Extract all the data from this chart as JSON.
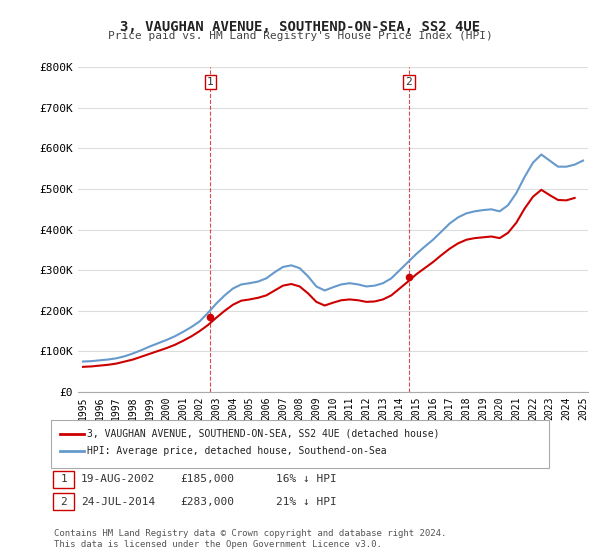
{
  "title": "3, VAUGHAN AVENUE, SOUTHEND-ON-SEA, SS2 4UE",
  "subtitle": "Price paid vs. HM Land Registry's House Price Index (HPI)",
  "ylabel_ticks": [
    "£0",
    "£100K",
    "£200K",
    "£300K",
    "£400K",
    "£500K",
    "£600K",
    "£700K",
    "£800K"
  ],
  "ytick_values": [
    0,
    100000,
    200000,
    300000,
    400000,
    500000,
    600000,
    700000,
    800000
  ],
  "ylim": [
    0,
    800000
  ],
  "xlim_start": 1995,
  "xlim_end": 2025,
  "x_ticks": [
    1995,
    1996,
    1997,
    1998,
    1999,
    2000,
    2001,
    2002,
    2003,
    2004,
    2005,
    2006,
    2007,
    2008,
    2009,
    2010,
    2011,
    2012,
    2013,
    2014,
    2015,
    2016,
    2017,
    2018,
    2019,
    2020,
    2021,
    2022,
    2023,
    2024,
    2025
  ],
  "hpi_color": "#6699cc",
  "price_color": "#cc0000",
  "vline_color": "#cc0000",
  "legend_box_color": "#ffffff",
  "legend_edge_color": "#aaaaaa",
  "transaction1_x": 2002.63,
  "transaction1_y": 185000,
  "transaction1_label": "1",
  "transaction2_x": 2014.56,
  "transaction2_y": 283000,
  "transaction2_label": "2",
  "hpi_data_x": [
    1995.0,
    1995.5,
    1996.0,
    1996.5,
    1997.0,
    1997.5,
    1998.0,
    1998.5,
    1999.0,
    1999.5,
    2000.0,
    2000.5,
    2001.0,
    2001.5,
    2002.0,
    2002.5,
    2003.0,
    2003.5,
    2004.0,
    2004.5,
    2005.0,
    2005.5,
    2006.0,
    2006.5,
    2007.0,
    2007.5,
    2008.0,
    2008.5,
    2009.0,
    2009.5,
    2010.0,
    2010.5,
    2011.0,
    2011.5,
    2012.0,
    2012.5,
    2013.0,
    2013.5,
    2014.0,
    2014.5,
    2015.0,
    2015.5,
    2016.0,
    2016.5,
    2017.0,
    2017.5,
    2018.0,
    2018.5,
    2019.0,
    2019.5,
    2020.0,
    2020.5,
    2021.0,
    2021.5,
    2022.0,
    2022.5,
    2023.0,
    2023.5,
    2024.0,
    2024.5,
    2025.0
  ],
  "hpi_data_y": [
    75000,
    76000,
    78000,
    80000,
    83000,
    88000,
    95000,
    103000,
    112000,
    120000,
    128000,
    137000,
    148000,
    160000,
    174000,
    195000,
    218000,
    238000,
    255000,
    265000,
    268000,
    272000,
    280000,
    295000,
    308000,
    312000,
    305000,
    285000,
    260000,
    250000,
    258000,
    265000,
    268000,
    265000,
    260000,
    262000,
    268000,
    280000,
    300000,
    320000,
    340000,
    358000,
    375000,
    395000,
    415000,
    430000,
    440000,
    445000,
    448000,
    450000,
    445000,
    460000,
    490000,
    530000,
    565000,
    585000,
    570000,
    555000,
    555000,
    560000,
    570000
  ],
  "price_data_x": [
    1995.0,
    1995.5,
    1996.0,
    1996.5,
    1997.0,
    1997.5,
    1998.0,
    1998.5,
    1999.0,
    1999.5,
    2000.0,
    2000.5,
    2001.0,
    2001.5,
    2002.0,
    2002.5,
    2003.0,
    2003.5,
    2004.0,
    2004.5,
    2005.0,
    2005.5,
    2006.0,
    2006.5,
    2007.0,
    2007.5,
    2008.0,
    2008.5,
    2009.0,
    2009.5,
    2010.0,
    2010.5,
    2011.0,
    2011.5,
    2012.0,
    2012.5,
    2013.0,
    2013.5,
    2014.0,
    2014.5,
    2015.0,
    2015.5,
    2016.0,
    2016.5,
    2017.0,
    2017.5,
    2018.0,
    2018.5,
    2019.0,
    2019.5,
    2020.0,
    2020.5,
    2021.0,
    2021.5,
    2022.0,
    2022.5,
    2023.0,
    2023.5,
    2024.0,
    2024.5
  ],
  "price_data_y": [
    62000,
    63000,
    65000,
    67000,
    70000,
    75000,
    80000,
    87000,
    94000,
    101000,
    108000,
    116000,
    126000,
    137000,
    150000,
    165000,
    183000,
    200000,
    215000,
    225000,
    228000,
    232000,
    238000,
    250000,
    262000,
    266000,
    260000,
    243000,
    222000,
    213000,
    220000,
    226000,
    228000,
    226000,
    222000,
    223000,
    228000,
    238000,
    255000,
    272000,
    290000,
    305000,
    320000,
    337000,
    353000,
    366000,
    375000,
    379000,
    381000,
    383000,
    379000,
    392000,
    417000,
    452000,
    481000,
    498000,
    485000,
    473000,
    472000,
    478000
  ],
  "legend1_text": "3, VAUGHAN AVENUE, SOUTHEND-ON-SEA, SS2 4UE (detached house)",
  "legend2_text": "HPI: Average price, detached house, Southend-on-Sea",
  "annotation1_date": "19-AUG-2002",
  "annotation1_price": "£185,000",
  "annotation1_hpi": "16% ↓ HPI",
  "annotation2_date": "24-JUL-2014",
  "annotation2_price": "£283,000",
  "annotation2_hpi": "21% ↓ HPI",
  "footer": "Contains HM Land Registry data © Crown copyright and database right 2024.\nThis data is licensed under the Open Government Licence v3.0.",
  "bg_color": "#ffffff",
  "plot_bg_color": "#ffffff",
  "grid_color": "#dddddd"
}
